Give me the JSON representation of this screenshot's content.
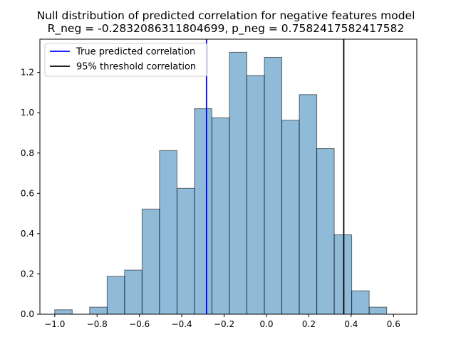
{
  "chart_data": {
    "type": "bar",
    "title": "Null distribution of predicted correlation for negative features model",
    "subtitle": "R_neg = -0.2832086311804699, p_neg = 0.7582417582417582",
    "xlabel": "",
    "ylabel": "",
    "xlim": [
      -1.07,
      0.71
    ],
    "ylim": [
      0.0,
      1.365
    ],
    "grid": false,
    "legend_position": "upper left",
    "bar_color": "#1f77b4",
    "bar_alpha": 0.5,
    "bar_edge_color": "#000000",
    "bins": [
      {
        "x0": -1.0,
        "x1": -0.9175,
        "value": 0.022
      },
      {
        "x0": -0.9175,
        "x1": -0.835,
        "value": 0.0
      },
      {
        "x0": -0.835,
        "x1": -0.7525,
        "value": 0.035
      },
      {
        "x0": -0.7525,
        "x1": -0.67,
        "value": 0.188
      },
      {
        "x0": -0.67,
        "x1": -0.5875,
        "value": 0.219
      },
      {
        "x0": -0.5875,
        "x1": -0.505,
        "value": 0.522
      },
      {
        "x0": -0.505,
        "x1": -0.4225,
        "value": 0.812
      },
      {
        "x0": -0.4225,
        "x1": -0.34,
        "value": 0.625
      },
      {
        "x0": -0.34,
        "x1": -0.2575,
        "value": 1.02
      },
      {
        "x0": -0.2575,
        "x1": -0.175,
        "value": 0.975
      },
      {
        "x0": -0.175,
        "x1": -0.0925,
        "value": 1.3
      },
      {
        "x0": -0.0925,
        "x1": -0.01,
        "value": 1.185
      },
      {
        "x0": -0.01,
        "x1": 0.0725,
        "value": 1.275
      },
      {
        "x0": 0.0725,
        "x1": 0.155,
        "value": 0.963
      },
      {
        "x0": 0.155,
        "x1": 0.2375,
        "value": 1.09
      },
      {
        "x0": 0.2375,
        "x1": 0.32,
        "value": 0.822
      },
      {
        "x0": 0.32,
        "x1": 0.4025,
        "value": 0.394
      },
      {
        "x0": 0.4025,
        "x1": 0.485,
        "value": 0.116
      },
      {
        "x0": 0.485,
        "x1": 0.5675,
        "value": 0.035
      },
      {
        "x0": 0.5675,
        "x1": 0.65,
        "value": 0.0
      }
    ],
    "vlines": [
      {
        "name": "True predicted correlation",
        "x": -0.2832086311804699,
        "color": "#0000ff"
      },
      {
        "name": "95% threshold correlation",
        "x": 0.365,
        "color": "#000000"
      }
    ],
    "x_ticks": [
      {
        "value": -1.0,
        "label": "−1.0"
      },
      {
        "value": -0.8,
        "label": "−0.8"
      },
      {
        "value": -0.6,
        "label": "−0.6"
      },
      {
        "value": -0.4,
        "label": "−0.4"
      },
      {
        "value": -0.2,
        "label": "−0.2"
      },
      {
        "value": 0.0,
        "label": "0.0"
      },
      {
        "value": 0.2,
        "label": "0.2"
      },
      {
        "value": 0.4,
        "label": "0.4"
      },
      {
        "value": 0.6,
        "label": "0.6"
      }
    ],
    "y_ticks": [
      {
        "value": 0.0,
        "label": "0.0"
      },
      {
        "value": 0.2,
        "label": "0.2"
      },
      {
        "value": 0.4,
        "label": "0.4"
      },
      {
        "value": 0.6,
        "label": "0.6"
      },
      {
        "value": 0.8,
        "label": "0.8"
      },
      {
        "value": 1.0,
        "label": "1.0"
      },
      {
        "value": 1.2,
        "label": "1.2"
      }
    ],
    "legend": [
      {
        "label": "True predicted correlation",
        "color": "#0000ff"
      },
      {
        "label": "95% threshold correlation",
        "color": "#000000"
      }
    ]
  }
}
